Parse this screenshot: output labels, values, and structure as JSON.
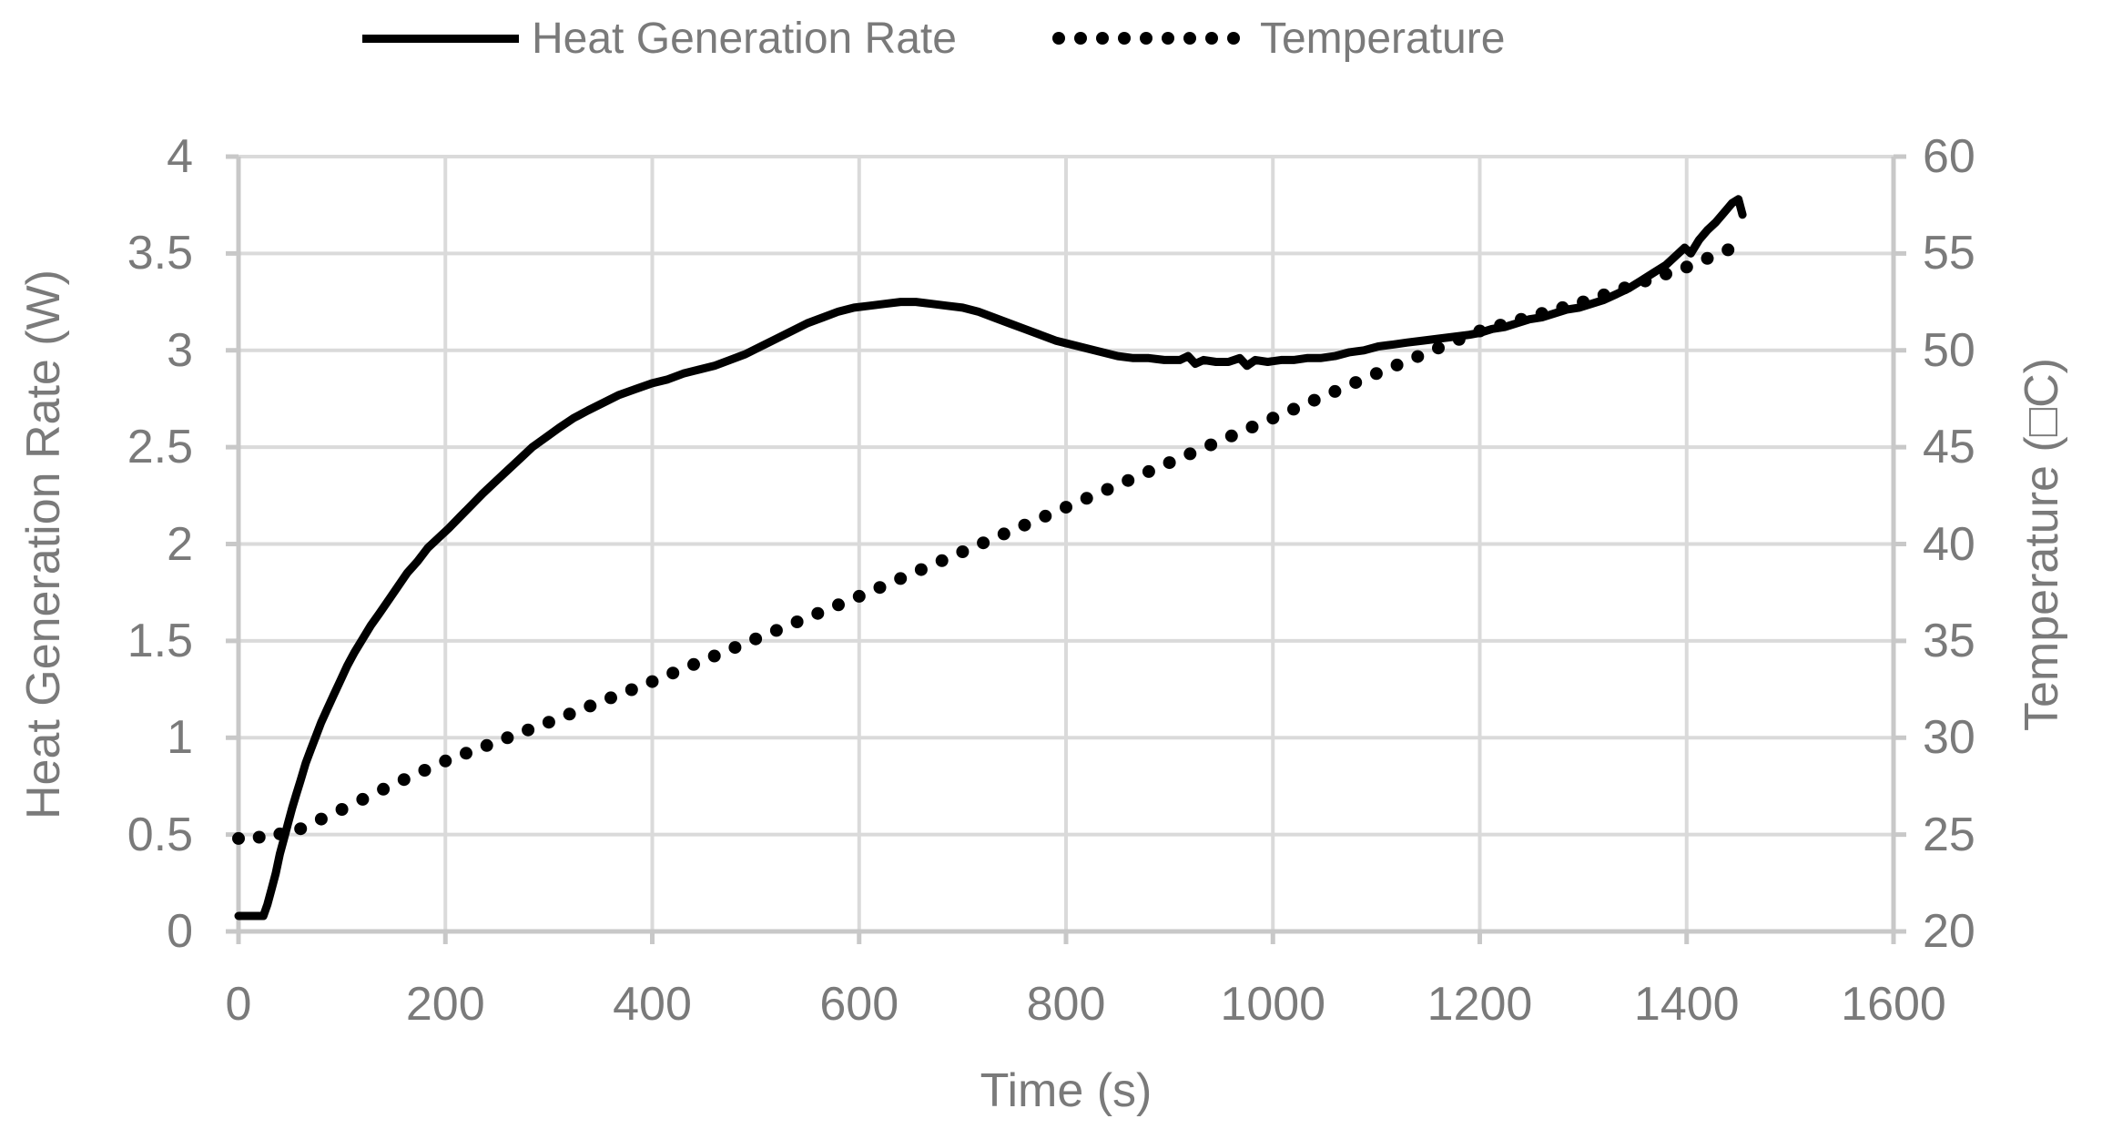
{
  "chart_data": {
    "type": "line",
    "title": "",
    "xlabel": "Time (s)",
    "ylabel_left": "Heat Generation Rate (W)",
    "ylabel_right": "Temperature (□C)",
    "x_range": [
      0,
      1600
    ],
    "x_ticks": [
      0,
      200,
      400,
      600,
      800,
      1000,
      1200,
      1400,
      1600
    ],
    "y_left_range": [
      0,
      4
    ],
    "y_left_ticks": [
      0,
      0.5,
      1,
      1.5,
      2,
      2.5,
      3,
      3.5,
      4
    ],
    "y_right_range": [
      20,
      60
    ],
    "y_right_ticks": [
      20,
      25,
      30,
      35,
      40,
      45,
      50,
      55,
      60
    ],
    "grid": true,
    "legend_position": "top-center",
    "series": [
      {
        "name": "Heat Generation Rate",
        "axis": "left",
        "style": "solid",
        "color": "#000000",
        "points": [
          [
            0,
            0.08
          ],
          [
            24,
            0.08
          ],
          [
            28,
            0.14
          ],
          [
            32,
            0.22
          ],
          [
            36,
            0.3
          ],
          [
            40,
            0.4
          ],
          [
            44,
            0.48
          ],
          [
            48,
            0.56
          ],
          [
            52,
            0.64
          ],
          [
            56,
            0.71
          ],
          [
            60,
            0.78
          ],
          [
            65,
            0.87
          ],
          [
            70,
            0.94
          ],
          [
            75,
            1.01
          ],
          [
            80,
            1.08
          ],
          [
            86,
            1.15
          ],
          [
            92,
            1.22
          ],
          [
            98,
            1.29
          ],
          [
            105,
            1.37
          ],
          [
            112,
            1.44
          ],
          [
            120,
            1.51
          ],
          [
            128,
            1.58
          ],
          [
            136,
            1.64
          ],
          [
            145,
            1.71
          ],
          [
            154,
            1.78
          ],
          [
            163,
            1.85
          ],
          [
            173,
            1.91
          ],
          [
            183,
            1.98
          ],
          [
            193,
            2.03
          ],
          [
            203,
            2.08
          ],
          [
            214,
            2.14
          ],
          [
            225,
            2.2
          ],
          [
            236,
            2.26
          ],
          [
            248,
            2.32
          ],
          [
            260,
            2.38
          ],
          [
            272,
            2.44
          ],
          [
            284,
            2.5
          ],
          [
            297,
            2.55
          ],
          [
            310,
            2.6
          ],
          [
            324,
            2.65
          ],
          [
            338,
            2.69
          ],
          [
            353,
            2.73
          ],
          [
            368,
            2.77
          ],
          [
            384,
            2.8
          ],
          [
            400,
            2.83
          ],
          [
            415,
            2.85
          ],
          [
            430,
            2.88
          ],
          [
            445,
            2.9
          ],
          [
            460,
            2.92
          ],
          [
            475,
            2.95
          ],
          [
            490,
            2.98
          ],
          [
            505,
            3.02
          ],
          [
            520,
            3.06
          ],
          [
            535,
            3.1
          ],
          [
            550,
            3.14
          ],
          [
            565,
            3.17
          ],
          [
            580,
            3.2
          ],
          [
            595,
            3.22
          ],
          [
            610,
            3.23
          ],
          [
            625,
            3.24
          ],
          [
            640,
            3.25
          ],
          [
            655,
            3.25
          ],
          [
            670,
            3.24
          ],
          [
            685,
            3.23
          ],
          [
            700,
            3.22
          ],
          [
            715,
            3.2
          ],
          [
            730,
            3.17
          ],
          [
            745,
            3.14
          ],
          [
            760,
            3.11
          ],
          [
            775,
            3.08
          ],
          [
            790,
            3.05
          ],
          [
            805,
            3.03
          ],
          [
            820,
            3.01
          ],
          [
            835,
            2.99
          ],
          [
            850,
            2.97
          ],
          [
            865,
            2.96
          ],
          [
            880,
            2.96
          ],
          [
            895,
            2.95
          ],
          [
            910,
            2.95
          ],
          [
            918,
            2.97
          ],
          [
            925,
            2.93
          ],
          [
            933,
            2.95
          ],
          [
            945,
            2.94
          ],
          [
            957,
            2.94
          ],
          [
            968,
            2.96
          ],
          [
            975,
            2.92
          ],
          [
            983,
            2.95
          ],
          [
            995,
            2.94
          ],
          [
            1008,
            2.95
          ],
          [
            1020,
            2.95
          ],
          [
            1033,
            2.96
          ],
          [
            1046,
            2.96
          ],
          [
            1060,
            2.97
          ],
          [
            1074,
            2.99
          ],
          [
            1088,
            3.0
          ],
          [
            1102,
            3.02
          ],
          [
            1116,
            3.03
          ],
          [
            1130,
            3.04
          ],
          [
            1145,
            3.05
          ],
          [
            1160,
            3.06
          ],
          [
            1175,
            3.07
          ],
          [
            1190,
            3.08
          ],
          [
            1200,
            3.09
          ],
          [
            1212,
            3.11
          ],
          [
            1224,
            3.12
          ],
          [
            1236,
            3.14
          ],
          [
            1248,
            3.16
          ],
          [
            1260,
            3.17
          ],
          [
            1272,
            3.19
          ],
          [
            1284,
            3.21
          ],
          [
            1296,
            3.22
          ],
          [
            1308,
            3.24
          ],
          [
            1320,
            3.26
          ],
          [
            1332,
            3.29
          ],
          [
            1344,
            3.32
          ],
          [
            1356,
            3.36
          ],
          [
            1368,
            3.4
          ],
          [
            1380,
            3.44
          ],
          [
            1390,
            3.49
          ],
          [
            1398,
            3.53
          ],
          [
            1404,
            3.5
          ],
          [
            1412,
            3.57
          ],
          [
            1420,
            3.62
          ],
          [
            1428,
            3.66
          ],
          [
            1436,
            3.71
          ],
          [
            1444,
            3.76
          ],
          [
            1450,
            3.78
          ],
          [
            1454,
            3.7
          ]
        ]
      },
      {
        "name": "Temperature",
        "axis": "right",
        "style": "dotted",
        "color": "#000000",
        "dot_spacing_s": 20,
        "points": [
          [
            0,
            24.8
          ],
          [
            30,
            24.9
          ],
          [
            60,
            25.3
          ],
          [
            100,
            26.3
          ],
          [
            150,
            27.6
          ],
          [
            200,
            28.8
          ],
          [
            250,
            29.8
          ],
          [
            300,
            30.8
          ],
          [
            400,
            32.9
          ],
          [
            500,
            35.1
          ],
          [
            600,
            37.3
          ],
          [
            700,
            39.6
          ],
          [
            800,
            41.9
          ],
          [
            900,
            44.2
          ],
          [
            1000,
            46.5
          ],
          [
            1100,
            48.8
          ],
          [
            1200,
            51.0
          ],
          [
            1300,
            52.5
          ],
          [
            1350,
            53.4
          ],
          [
            1400,
            54.3
          ],
          [
            1445,
            55.3
          ]
        ]
      }
    ]
  },
  "legend": {
    "items": [
      {
        "label": "Heat Generation Rate",
        "marker": "solid-line"
      },
      {
        "label": "Temperature",
        "marker": "dotted-line"
      }
    ]
  },
  "colors": {
    "text": "#7a7a7a",
    "gridline": "#dadada",
    "axis_line": "#c8c8c8",
    "series": "#000000",
    "background": "#ffffff"
  }
}
